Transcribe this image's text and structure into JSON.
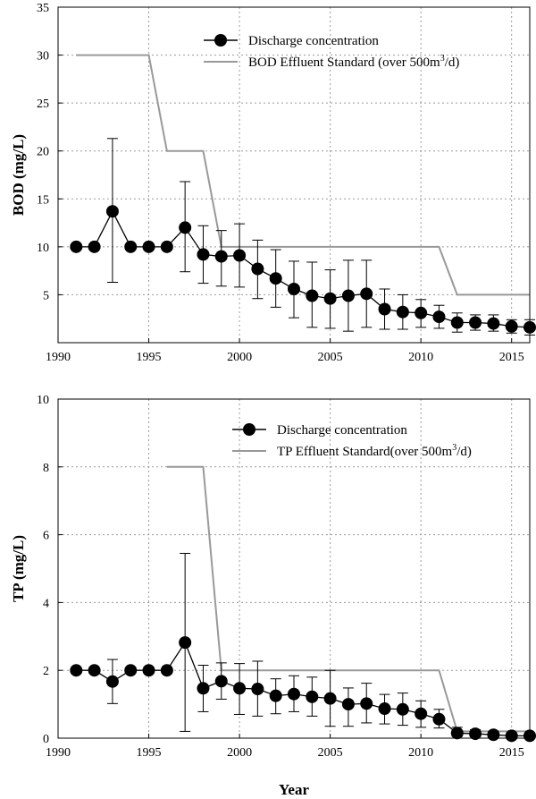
{
  "chart_data": [
    {
      "type": "line",
      "ylabel": "BOD (mg/L)",
      "xlabel": "",
      "xlim": [
        1990,
        2016
      ],
      "ylim": [
        0,
        35
      ],
      "xticks": [
        1990,
        1995,
        2000,
        2005,
        2010,
        2015
      ],
      "yticks": [
        5,
        10,
        15,
        20,
        25,
        30,
        35
      ],
      "grid": true,
      "legend_position": "top-right",
      "legend": {
        "discharge_label": "Discharge concentration",
        "standard_label_pre": "BOD Effluent Standard (over 500m",
        "standard_label_sup": "3",
        "standard_label_post": "/d)"
      },
      "series": [
        {
          "name": "Discharge concentration",
          "style": "marker-line",
          "color": "#000000",
          "x": [
            1991,
            1992,
            1993,
            1994,
            1995,
            1996,
            1997,
            1998,
            1999,
            2000,
            2001,
            2002,
            2003,
            2004,
            2005,
            2006,
            2007,
            2008,
            2009,
            2010,
            2011,
            2012,
            2013,
            2014,
            2015,
            2016
          ],
          "y": [
            10.0,
            10.0,
            13.7,
            10.0,
            10.0,
            10.0,
            12.0,
            9.2,
            9.0,
            9.1,
            7.7,
            6.7,
            5.6,
            4.9,
            4.6,
            4.9,
            5.1,
            3.5,
            3.2,
            3.1,
            2.7,
            2.1,
            2.1,
            2.0,
            1.7,
            1.6
          ],
          "err_low": [
            null,
            null,
            6.3,
            null,
            null,
            null,
            7.4,
            6.2,
            5.9,
            5.8,
            4.6,
            3.7,
            2.6,
            1.6,
            1.5,
            1.2,
            1.6,
            1.4,
            1.4,
            1.6,
            1.5,
            1.1,
            1.3,
            1.2,
            1.0,
            0.8
          ],
          "err_high": [
            null,
            null,
            21.3,
            null,
            null,
            null,
            16.8,
            12.2,
            11.7,
            12.4,
            10.7,
            9.7,
            8.5,
            8.4,
            7.6,
            8.6,
            8.6,
            5.6,
            5.0,
            4.5,
            3.9,
            3.1,
            2.9,
            2.9,
            2.4,
            2.4
          ]
        },
        {
          "name": "BOD Effluent Standard (over 500m3/d)",
          "style": "step-line",
          "color": "#999999",
          "x": [
            1991,
            1995,
            1996,
            1998,
            1999,
            2011,
            2012,
            2016
          ],
          "y": [
            30,
            30,
            20,
            20,
            10,
            10,
            5,
            5
          ]
        }
      ]
    },
    {
      "type": "line",
      "ylabel": "TP (mg/L)",
      "xlabel": "Year",
      "xlim": [
        1990,
        2016
      ],
      "ylim": [
        0,
        10
      ],
      "xticks": [
        1990,
        1995,
        2000,
        2005,
        2010,
        2015
      ],
      "yticks": [
        0,
        2,
        4,
        6,
        8,
        10
      ],
      "grid": true,
      "legend_position": "top-right",
      "legend": {
        "discharge_label": "Discharge concentration",
        "standard_label_pre": "TP Effluent Standard(over 500m",
        "standard_label_sup": "3",
        "standard_label_post": "/d)"
      },
      "series": [
        {
          "name": "Discharge concentration",
          "style": "marker-line",
          "color": "#000000",
          "x": [
            1991,
            1992,
            1993,
            1994,
            1995,
            1996,
            1997,
            1998,
            1999,
            2000,
            2001,
            2002,
            2003,
            2004,
            2005,
            2006,
            2007,
            2008,
            2009,
            2010,
            2011,
            2012,
            2013,
            2014,
            2015,
            2016
          ],
          "y": [
            2.0,
            2.0,
            1.67,
            2.0,
            2.0,
            2.0,
            2.82,
            1.47,
            1.68,
            1.47,
            1.45,
            1.25,
            1.3,
            1.22,
            1.17,
            1.0,
            1.02,
            0.87,
            0.85,
            0.72,
            0.56,
            0.15,
            0.13,
            0.1,
            0.07,
            0.07
          ],
          "err_low": [
            null,
            null,
            1.02,
            null,
            null,
            null,
            0.2,
            0.78,
            1.15,
            0.7,
            0.65,
            0.72,
            0.78,
            0.65,
            0.35,
            0.35,
            0.45,
            0.42,
            0.38,
            0.32,
            0.3,
            0.05,
            0.05,
            0.04,
            0.02,
            0.02
          ],
          "err_high": [
            null,
            null,
            2.32,
            null,
            null,
            null,
            5.45,
            2.15,
            2.22,
            2.2,
            2.27,
            1.75,
            1.84,
            1.8,
            2.0,
            1.48,
            1.62,
            1.29,
            1.33,
            1.1,
            0.85,
            0.32,
            0.25,
            0.2,
            0.14,
            0.14
          ]
        },
        {
          "name": "TP Effluent Standard(over 500m3/d)",
          "style": "step-line",
          "color": "#999999",
          "x": [
            1996,
            1998,
            1999,
            2011,
            2012,
            2016
          ],
          "y": [
            8,
            8,
            2,
            2,
            0.2,
            0.2
          ]
        }
      ]
    }
  ]
}
